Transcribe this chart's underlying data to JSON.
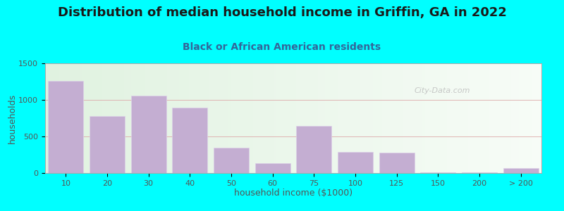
{
  "title": "Distribution of median household income in Griffin, GA in 2022",
  "subtitle": "Black or African American residents",
  "xlabel": "household income ($1000)",
  "ylabel": "households",
  "background_color": "#00ffff",
  "bar_color": "#c4aed2",
  "bar_edge_color": "#ddd0e8",
  "categories": [
    "10",
    "20",
    "30",
    "40",
    "50",
    "60",
    "75",
    "100",
    "125",
    "150",
    "200",
    "> 200"
  ],
  "values": [
    1260,
    780,
    1060,
    890,
    350,
    130,
    640,
    290,
    280,
    5,
    5,
    70
  ],
  "ylim": [
    0,
    1500
  ],
  "yticks": [
    0,
    500,
    1000,
    1500
  ],
  "title_fontsize": 13,
  "subtitle_fontsize": 10,
  "axis_label_fontsize": 9,
  "tick_fontsize": 8,
  "watermark": "City-Data.com"
}
